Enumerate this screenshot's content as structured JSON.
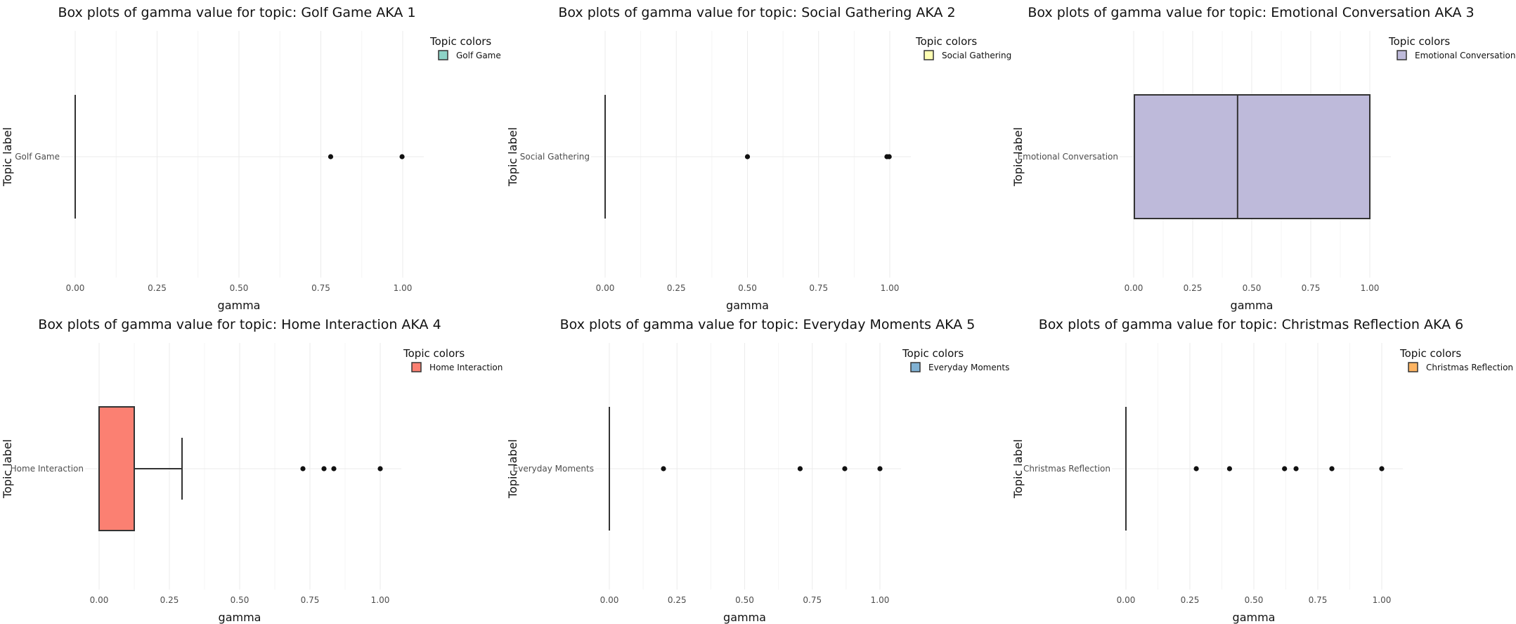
{
  "axis_labels": {
    "x": "gamma",
    "y": "Topic label"
  },
  "legend_title": "Topic colors",
  "x_ticks": [
    "0.00",
    "0.25",
    "0.50",
    "0.75",
    "1.00"
  ],
  "chart_data": [
    {
      "type": "box",
      "title": "Box plots of gamma value for topic: Golf Game AKA 1",
      "category": "Golf Game",
      "legend_label": "Golf Game",
      "color": "#8dd3c7",
      "xlabel": "gamma",
      "ylabel": "Topic label",
      "xlim": [
        0,
        1
      ],
      "box": {
        "min": 0.0,
        "q1": 0.0,
        "median": 0.0,
        "q3": 0.0,
        "max": 0.0
      },
      "outliers": [
        0.78,
        0.998
      ]
    },
    {
      "type": "box",
      "title": "Box plots of gamma value for topic: Social Gathering AKA 2",
      "category": "Social Gathering",
      "legend_label": "Social Gathering",
      "color": "#ffffb3",
      "xlabel": "gamma",
      "ylabel": "Topic label",
      "xlim": [
        0,
        1
      ],
      "box": {
        "min": 0.0,
        "q1": 0.0,
        "median": 0.0,
        "q3": 0.0,
        "max": 0.0
      },
      "outliers": [
        0.5,
        0.99,
        0.998
      ]
    },
    {
      "type": "box",
      "title": "Box plots of gamma value for topic: Emotional Conversation AKA 3",
      "category": "Emotional Conversation",
      "legend_label": "Emotional Conversation",
      "color": "#bebada",
      "xlabel": "gamma",
      "ylabel": "Topic label",
      "xlim": [
        0,
        1
      ],
      "box": {
        "min": 0.0,
        "q1": 0.003,
        "median": 0.44,
        "q3": 1.0,
        "max": 1.0
      },
      "outliers": []
    },
    {
      "type": "box",
      "title": "Box plots of gamma value for topic: Home Interaction AKA 4",
      "category": "Home Interaction",
      "legend_label": "Home Interaction",
      "color": "#fb8072",
      "xlabel": "gamma",
      "ylabel": "Topic label",
      "xlim": [
        0,
        1
      ],
      "box": {
        "min": 0.0,
        "q1": 0.0,
        "median": 0.0,
        "q3": 0.125,
        "max": 0.295
      },
      "outliers": [
        0.725,
        0.8,
        0.835,
        1.0
      ]
    },
    {
      "type": "box",
      "title": "Box plots of gamma value for topic: Everyday Moments AKA 5",
      "category": "Everyday Moments",
      "legend_label": "Everyday Moments",
      "color": "#80b1d3",
      "xlabel": "gamma",
      "ylabel": "Topic label",
      "xlim": [
        0,
        1
      ],
      "box": {
        "min": 0.0,
        "q1": 0.0,
        "median": 0.0,
        "q3": 0.0,
        "max": 0.0
      },
      "outliers": [
        0.2,
        0.705,
        0.87,
        1.0
      ]
    },
    {
      "type": "box",
      "title": "Box plots of gamma value for topic: Christmas Reflection AKA 6",
      "category": "Christmas Reflection",
      "legend_label": "Christmas Reflection",
      "color": "#fdb462",
      "xlabel": "gamma",
      "ylabel": "Topic label",
      "xlim": [
        0,
        1
      ],
      "box": {
        "min": 0.0,
        "q1": 0.0,
        "median": 0.0,
        "q3": 0.0,
        "max": 0.0
      },
      "outliers": [
        0.275,
        0.405,
        0.62,
        0.665,
        0.805,
        1.0
      ]
    }
  ]
}
